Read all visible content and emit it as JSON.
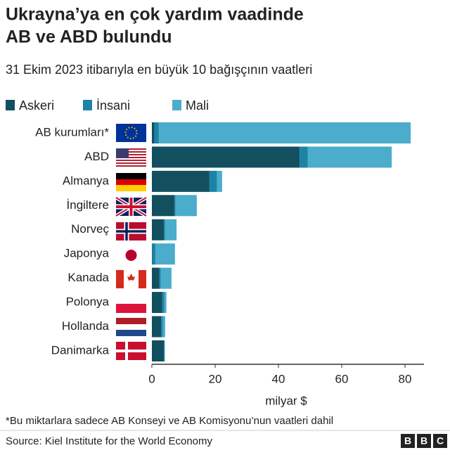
{
  "chart_data": {
    "type": "bar",
    "orientation": "horizontal",
    "stacked": true,
    "title": "Ukrayna’ya en çok yardım vaadinde AB ve ABD bulundu",
    "subtitle": "31 Ekim 2023 itibarıyla en büyük 10 bağışçının vaatleri",
    "categories": [
      "AB kurumları*",
      "ABD",
      "Almanya",
      "İngiltere",
      "Norveç",
      "Japonya",
      "Kanada",
      "Polonya",
      "Hollanda",
      "Danimarka"
    ],
    "series": [
      {
        "name": "Askeri",
        "color": "#12505f",
        "values": [
          0.8,
          46.7,
          18.2,
          7.1,
          3.8,
          0.1,
          2.4,
          3.3,
          2.9,
          3.8
        ]
      },
      {
        "name": "İnsani",
        "color": "#1b83a6",
        "values": [
          1.4,
          2.6,
          2.4,
          0.4,
          0.4,
          1.0,
          0.4,
          0.6,
          0.6,
          0.2
        ]
      },
      {
        "name": "Mali",
        "color": "#4baccc",
        "values": [
          79.6,
          26.5,
          1.6,
          6.7,
          3.6,
          6.2,
          3.4,
          0.7,
          0.7,
          0.1
        ]
      }
    ],
    "xlim": [
      0,
      86
    ],
    "xticks": [
      0,
      20,
      40,
      60,
      80
    ],
    "grid": false,
    "xlabel": "milyar $",
    "footnote": "*Bu miktarlara sadece AB Konseyi ve AB Komisyonu’nun vaatleri dahil",
    "source": "Source: Kiel Institute for the World Economy",
    "logo": [
      "B",
      "B",
      "C"
    ]
  }
}
